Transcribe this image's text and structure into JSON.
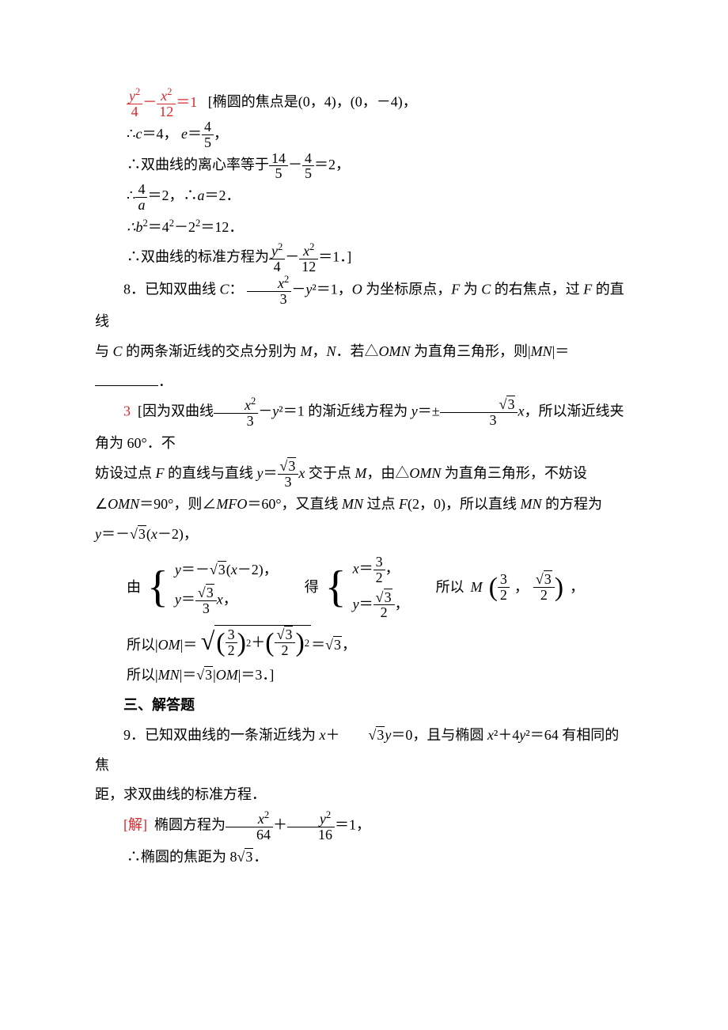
{
  "colors": {
    "red": "#d6282c",
    "blue": "#3b78c3",
    "text": "#000000",
    "bg": "#ffffff"
  },
  "font_size_pt": 14,
  "ans7": {
    "eq": {
      "num1": "y",
      "den1": "4",
      "num2": "x",
      "den2": "12",
      "rhs": "1"
    },
    "foci_text": "[椭圆的焦点是(0，4)，(0，－4)，",
    "l2_a": "∴",
    "l2_b": "c",
    "l2_c": "＝4，",
    "l2_d": "e",
    "l2_e": "＝",
    "l2_frac_n": "4",
    "l2_frac_d": "5",
    "l2_f": "，",
    "l3_a": "∴双曲线的离心率等于",
    "l3_f1n": "14",
    "l3_f1d": "5",
    "l3_mid": "－",
    "l3_f2n": "4",
    "l3_f2d": "5",
    "l3_b": "＝2，",
    "l4_a": "∴",
    "l4_fn": "4",
    "l4_fd": "a",
    "l4_b": "＝2，∴",
    "l4_c": "a",
    "l4_d": "＝2．",
    "l5": "∴b²＝4²－2²＝12．",
    "l6_a": "∴双曲线的标准方程为",
    "l6_f1n": "y",
    "l6_f1d": "4",
    "l6_mid": "－",
    "l6_f2n": "x",
    "l6_f2d": "12",
    "l6_b": "＝1．]"
  },
  "q8": {
    "num": "8．",
    "p1a": "已知双曲线 ",
    "p1b": "C",
    "p1c": "：",
    "frac_n": "x",
    "frac_d": "3",
    "p1d": "－",
    "p1e": "y",
    "p1f": "²＝1，",
    "p1g": "O",
    "p1h": " 为坐标原点，",
    "p1i": "F",
    "p1j": " 为 ",
    "p1k": "C",
    "p1l": " 的右焦点，过 ",
    "p1m": "F",
    "p1n": " 的直线",
    "p2a": "与 ",
    "p2b": "C",
    "p2c": " 的两条渐近线的交点分别为 ",
    "p2d": "M",
    "p2e": "，",
    "p2f": "N",
    "p2g": "．若△",
    "p2h": "OMN",
    "p2i": " 为直角三角形，则|",
    "p2j": "MN",
    "p2k": "|＝",
    "blank_suffix": "．"
  },
  "ans8": {
    "val": "3",
    "l1a": "[因为双曲线",
    "l1_f1n": "x",
    "l1_f1d": "3",
    "l1b": "－",
    "l1c": "y",
    "l1d": "²＝1 的渐近线方程为 ",
    "l1e": "y",
    "l1f": "＝±",
    "l1_f2n": "3",
    "l1_f2d": "3",
    "l1g": "x",
    "l1h": "，所以渐近线夹角为 60°．不",
    "l2a": "妨设过点 ",
    "l2b": "F",
    "l2c": " 的直线与直线 ",
    "l2d": "y",
    "l2e": "＝",
    "l2_fn": "3",
    "l2_fd": "3",
    "l2f": "x",
    "l2g": " 交于点 ",
    "l2h": "M",
    "l2i": "，由△",
    "l2j": "OMN",
    "l2k": " 为直角三角形，不妨设",
    "l3a": "∠",
    "l3b": "OMN",
    "l3c": "＝90°，则∠",
    "l3d": "MFO",
    "l3e": "＝60°，又直线 ",
    "l3f": "MN",
    "l3g": " 过点 ",
    "l3h": "F",
    "l3i": "(2，0)，所以直线 ",
    "l3j": "MN",
    "l3k": " 的方程为",
    "l4a": "y",
    "l4b": "＝－",
    "l4c": "3",
    "l4d": "(",
    "l4e": "x",
    "l4f": "－2)，",
    "sys1_pre": "由",
    "sys1_r1a": "y",
    "sys1_r1b": "＝－",
    "sys1_r1c": "3",
    "sys1_r1d": "(",
    "sys1_r1e": "x",
    "sys1_r1f": "－2)，",
    "sys1_r2a": "y",
    "sys1_r2b": "＝",
    "sys1_r2n": "3",
    "sys1_r2d": "3",
    "sys1_r2c": "x",
    "sys1_r2e": "，",
    "sys2_pre": "得",
    "sys2_r1a": "x",
    "sys2_r1b": "＝",
    "sys2_r1n": "3",
    "sys2_r1d": "2",
    "sys2_r1c": "，",
    "sys2_r2a": "y",
    "sys2_r2b": "＝",
    "sys2_r2n": "3",
    "sys2_r2d": "2",
    "sys2_r2c": "，",
    "sys_post_a": "所以 ",
    "sys_post_b": "M",
    "m_x_n": "3",
    "m_x_d": "2",
    "m_y_n": "3",
    "m_y_d": "2",
    "m_end": "，",
    "om_a": "所以|",
    "om_b": "OM",
    "om_c": "|＝",
    "om_t1n": "3",
    "om_t1d": "2",
    "om_plus": "＋",
    "om_t2n": "3",
    "om_t2d": "2",
    "om_eq": "＝",
    "om_res": "3",
    "om_end": "，",
    "mn_a": "所以|",
    "mn_b": "MN",
    "mn_c": "|＝",
    "mn_d": "3",
    "mn_e": "|",
    "mn_f": "OM",
    "mn_g": "|＝3．]"
  },
  "sec3": "三、解答题",
  "q9": {
    "num": "9．",
    "p1a": "已知双曲线的一条渐近线为 ",
    "p1b": "x",
    "p1c": "＋",
    "p1d": "3",
    "p1e": "y",
    "p1f": "＝0，且与椭圆 ",
    "p1g": "x",
    "p1h": "²＋4",
    "p1i": "y",
    "p1j": "²＝64 有相同的焦",
    "p2": "距，求双曲线的标准方程．"
  },
  "ans9": {
    "label": "[解]",
    "l1a": "椭圆方程为",
    "l1_f1n": "x",
    "l1_f1d": "64",
    "l1b": "＋",
    "l1_f2n": "y",
    "l1_f2d": "16",
    "l1c": "＝1，",
    "l2a": "∴椭圆的焦距为 8",
    "l2b": "3",
    "l2c": "．"
  }
}
